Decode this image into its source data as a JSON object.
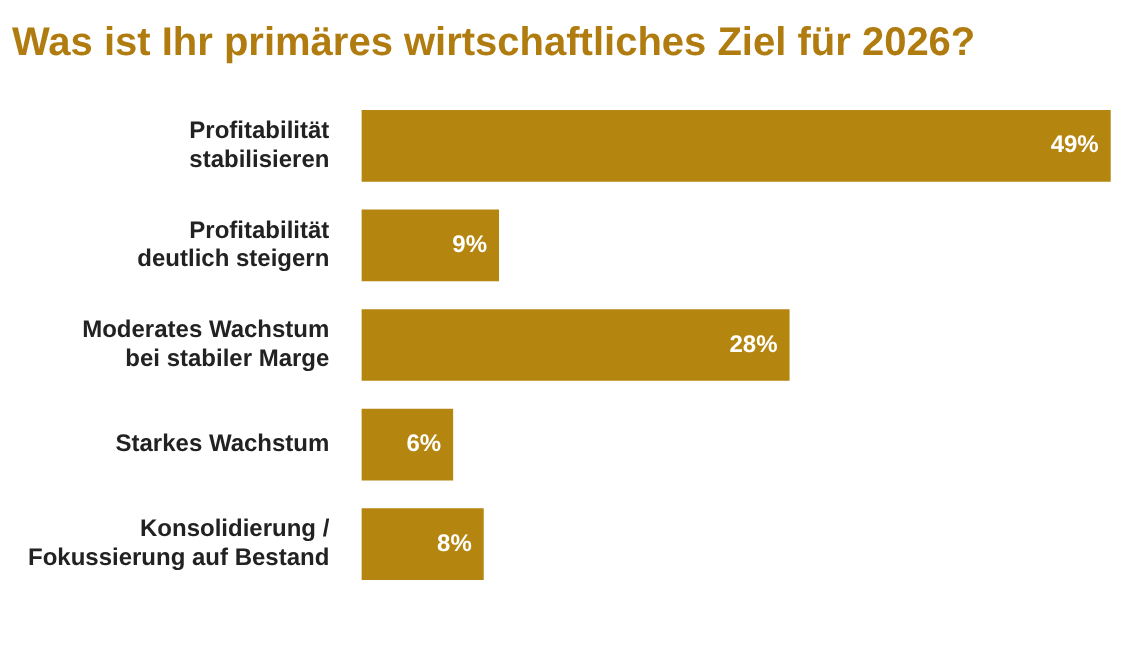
{
  "chart_data": {
    "type": "bar",
    "orientation": "horizontal",
    "title": "Was ist Ihr primäres wirtschaftliches Ziel für 2026?",
    "categories": [
      "Profitabilität stabilisieren",
      "Profitabilität deutlich steigern",
      "Moderates Wachstum bei stabiler Marge",
      "Starkes Wachstum",
      "Konsolidierung / Fokussierung auf Bestand"
    ],
    "values": [
      49,
      9,
      28,
      6,
      8
    ],
    "value_labels": [
      "49%",
      "9%",
      "28%",
      "6%",
      "8%"
    ],
    "color": "#b5860f",
    "legend": false
  }
}
